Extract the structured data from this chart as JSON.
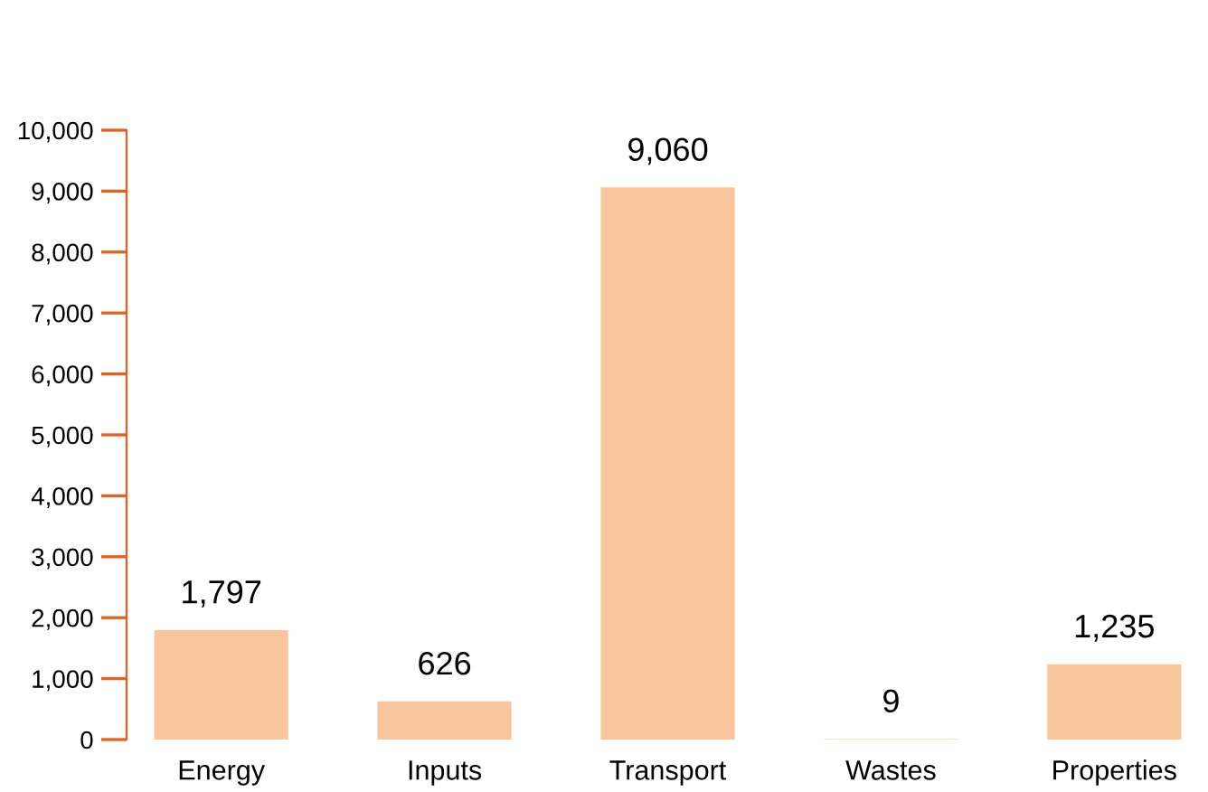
{
  "chart_data": {
    "type": "bar",
    "categories": [
      "Energy",
      "Inputs",
      "Transport",
      "Wastes",
      "Properties"
    ],
    "values": [
      1797,
      626,
      9060,
      9,
      1235
    ],
    "value_labels": [
      "1,797",
      "626",
      "9,060",
      "9",
      "1,235"
    ],
    "color": "#f9c59c",
    "ylim": [
      0,
      10000
    ],
    "yticks": [
      {
        "value": 0,
        "label": "0"
      },
      {
        "value": 1000,
        "label": "1,000"
      },
      {
        "value": 2000,
        "label": "2,000"
      },
      {
        "value": 3000,
        "label": "3,000"
      },
      {
        "value": 4000,
        "label": "4,000"
      },
      {
        "value": 5000,
        "label": "5,000"
      },
      {
        "value": 6000,
        "label": "6,000"
      },
      {
        "value": 7000,
        "label": "7,000"
      },
      {
        "value": 8000,
        "label": "8,000"
      },
      {
        "value": 9000,
        "label": "9,000"
      },
      {
        "value": 10000,
        "label": "10,000"
      }
    ],
    "grid": false,
    "legend": false
  }
}
